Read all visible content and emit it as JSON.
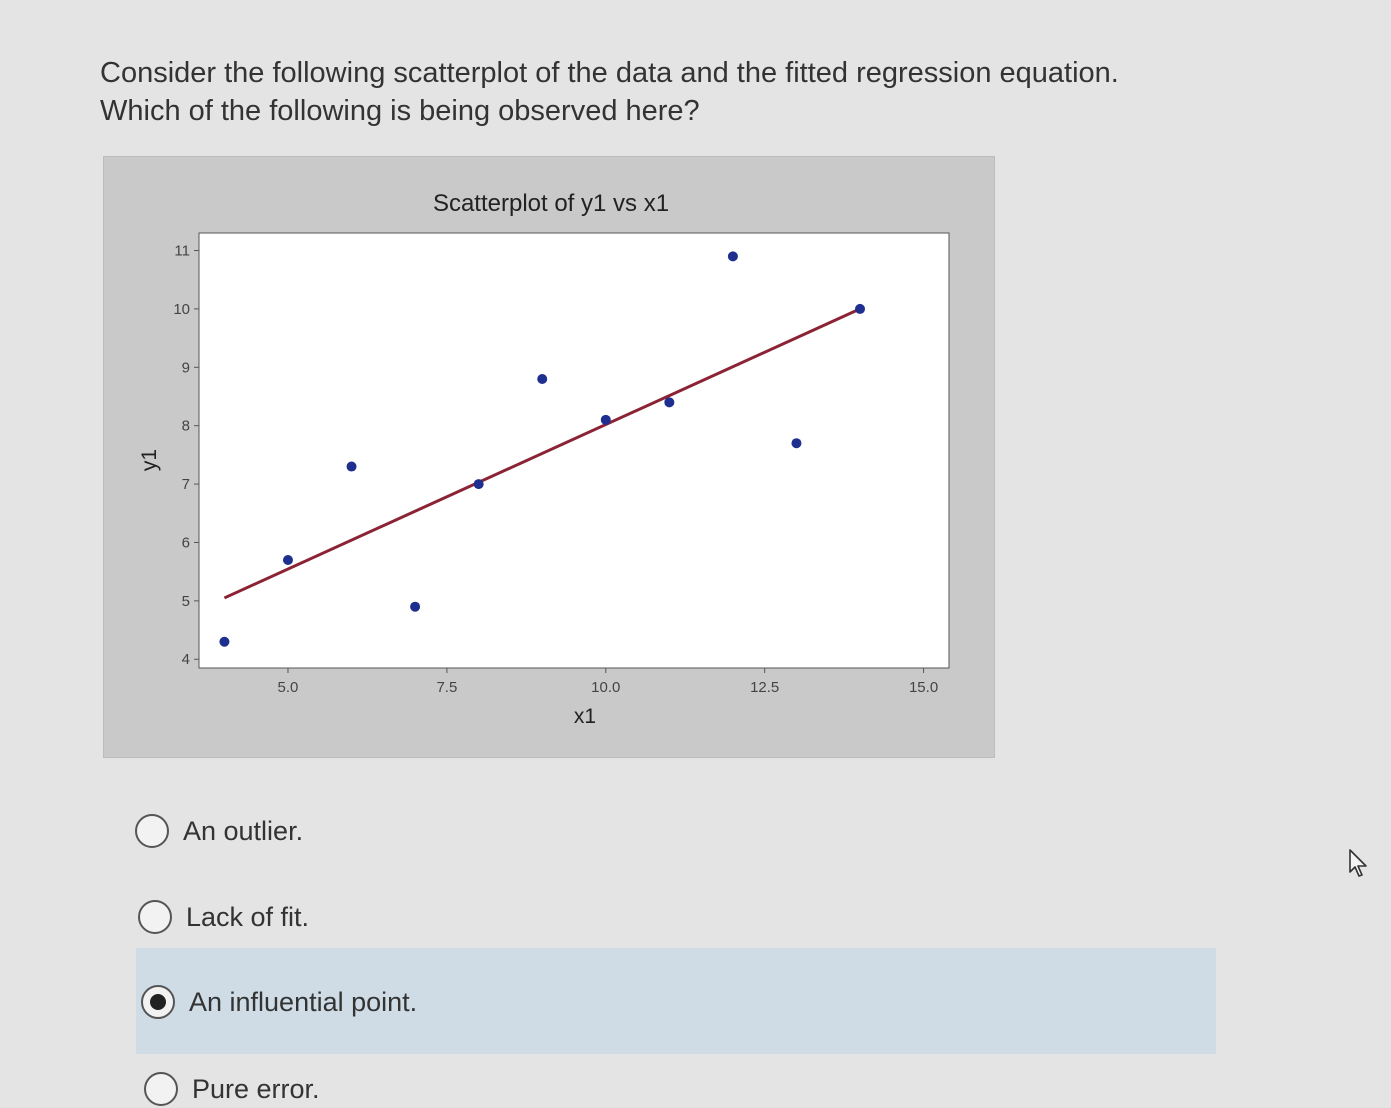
{
  "question": {
    "line1": "Consider the following scatterplot of the data and the fitted regression equation.",
    "line2": "Which of the following is being observed here?"
  },
  "chart_data": {
    "type": "scatter",
    "title": "Scatterplot of y1 vs x1",
    "xlabel": "x1",
    "ylabel": "y1",
    "xlim": [
      3.6,
      15.4
    ],
    "ylim": [
      3.85,
      11.3
    ],
    "x_ticks": [
      5.0,
      7.5,
      10.0,
      12.5,
      15.0
    ],
    "x_tick_labels": [
      "5.0",
      "7.5",
      "10.0",
      "12.5",
      "15.0"
    ],
    "y_ticks": [
      4,
      5,
      6,
      7,
      8,
      9,
      10,
      11
    ],
    "y_tick_labels": [
      "4",
      "5",
      "6",
      "7",
      "8",
      "9",
      "10",
      "11"
    ],
    "points": [
      {
        "x": 4,
        "y": 4.3
      },
      {
        "x": 5,
        "y": 5.7
      },
      {
        "x": 6,
        "y": 7.3
      },
      {
        "x": 7,
        "y": 4.9
      },
      {
        "x": 8,
        "y": 7.0
      },
      {
        "x": 9,
        "y": 8.8
      },
      {
        "x": 10,
        "y": 8.1
      },
      {
        "x": 11,
        "y": 8.4
      },
      {
        "x": 12,
        "y": 10.9
      },
      {
        "x": 13,
        "y": 7.7
      },
      {
        "x": 14,
        "y": 10.0
      }
    ],
    "fit_line": {
      "x": [
        4,
        14
      ],
      "y": [
        5.05,
        10.0
      ]
    },
    "colors": {
      "points": "#1f2f8f",
      "fit_line": "#8b2335",
      "plot_bg": "#ffffff",
      "frame_bg": "#c9c9c9"
    },
    "grid": false
  },
  "options": [
    {
      "label": "An outlier.",
      "selected": false
    },
    {
      "label": "Lack of fit.",
      "selected": false
    },
    {
      "label": "An influential point.",
      "selected": true
    },
    {
      "label": "Pure error.",
      "selected": false
    }
  ],
  "icons": {
    "cursor": "mouse-pointer-icon"
  }
}
